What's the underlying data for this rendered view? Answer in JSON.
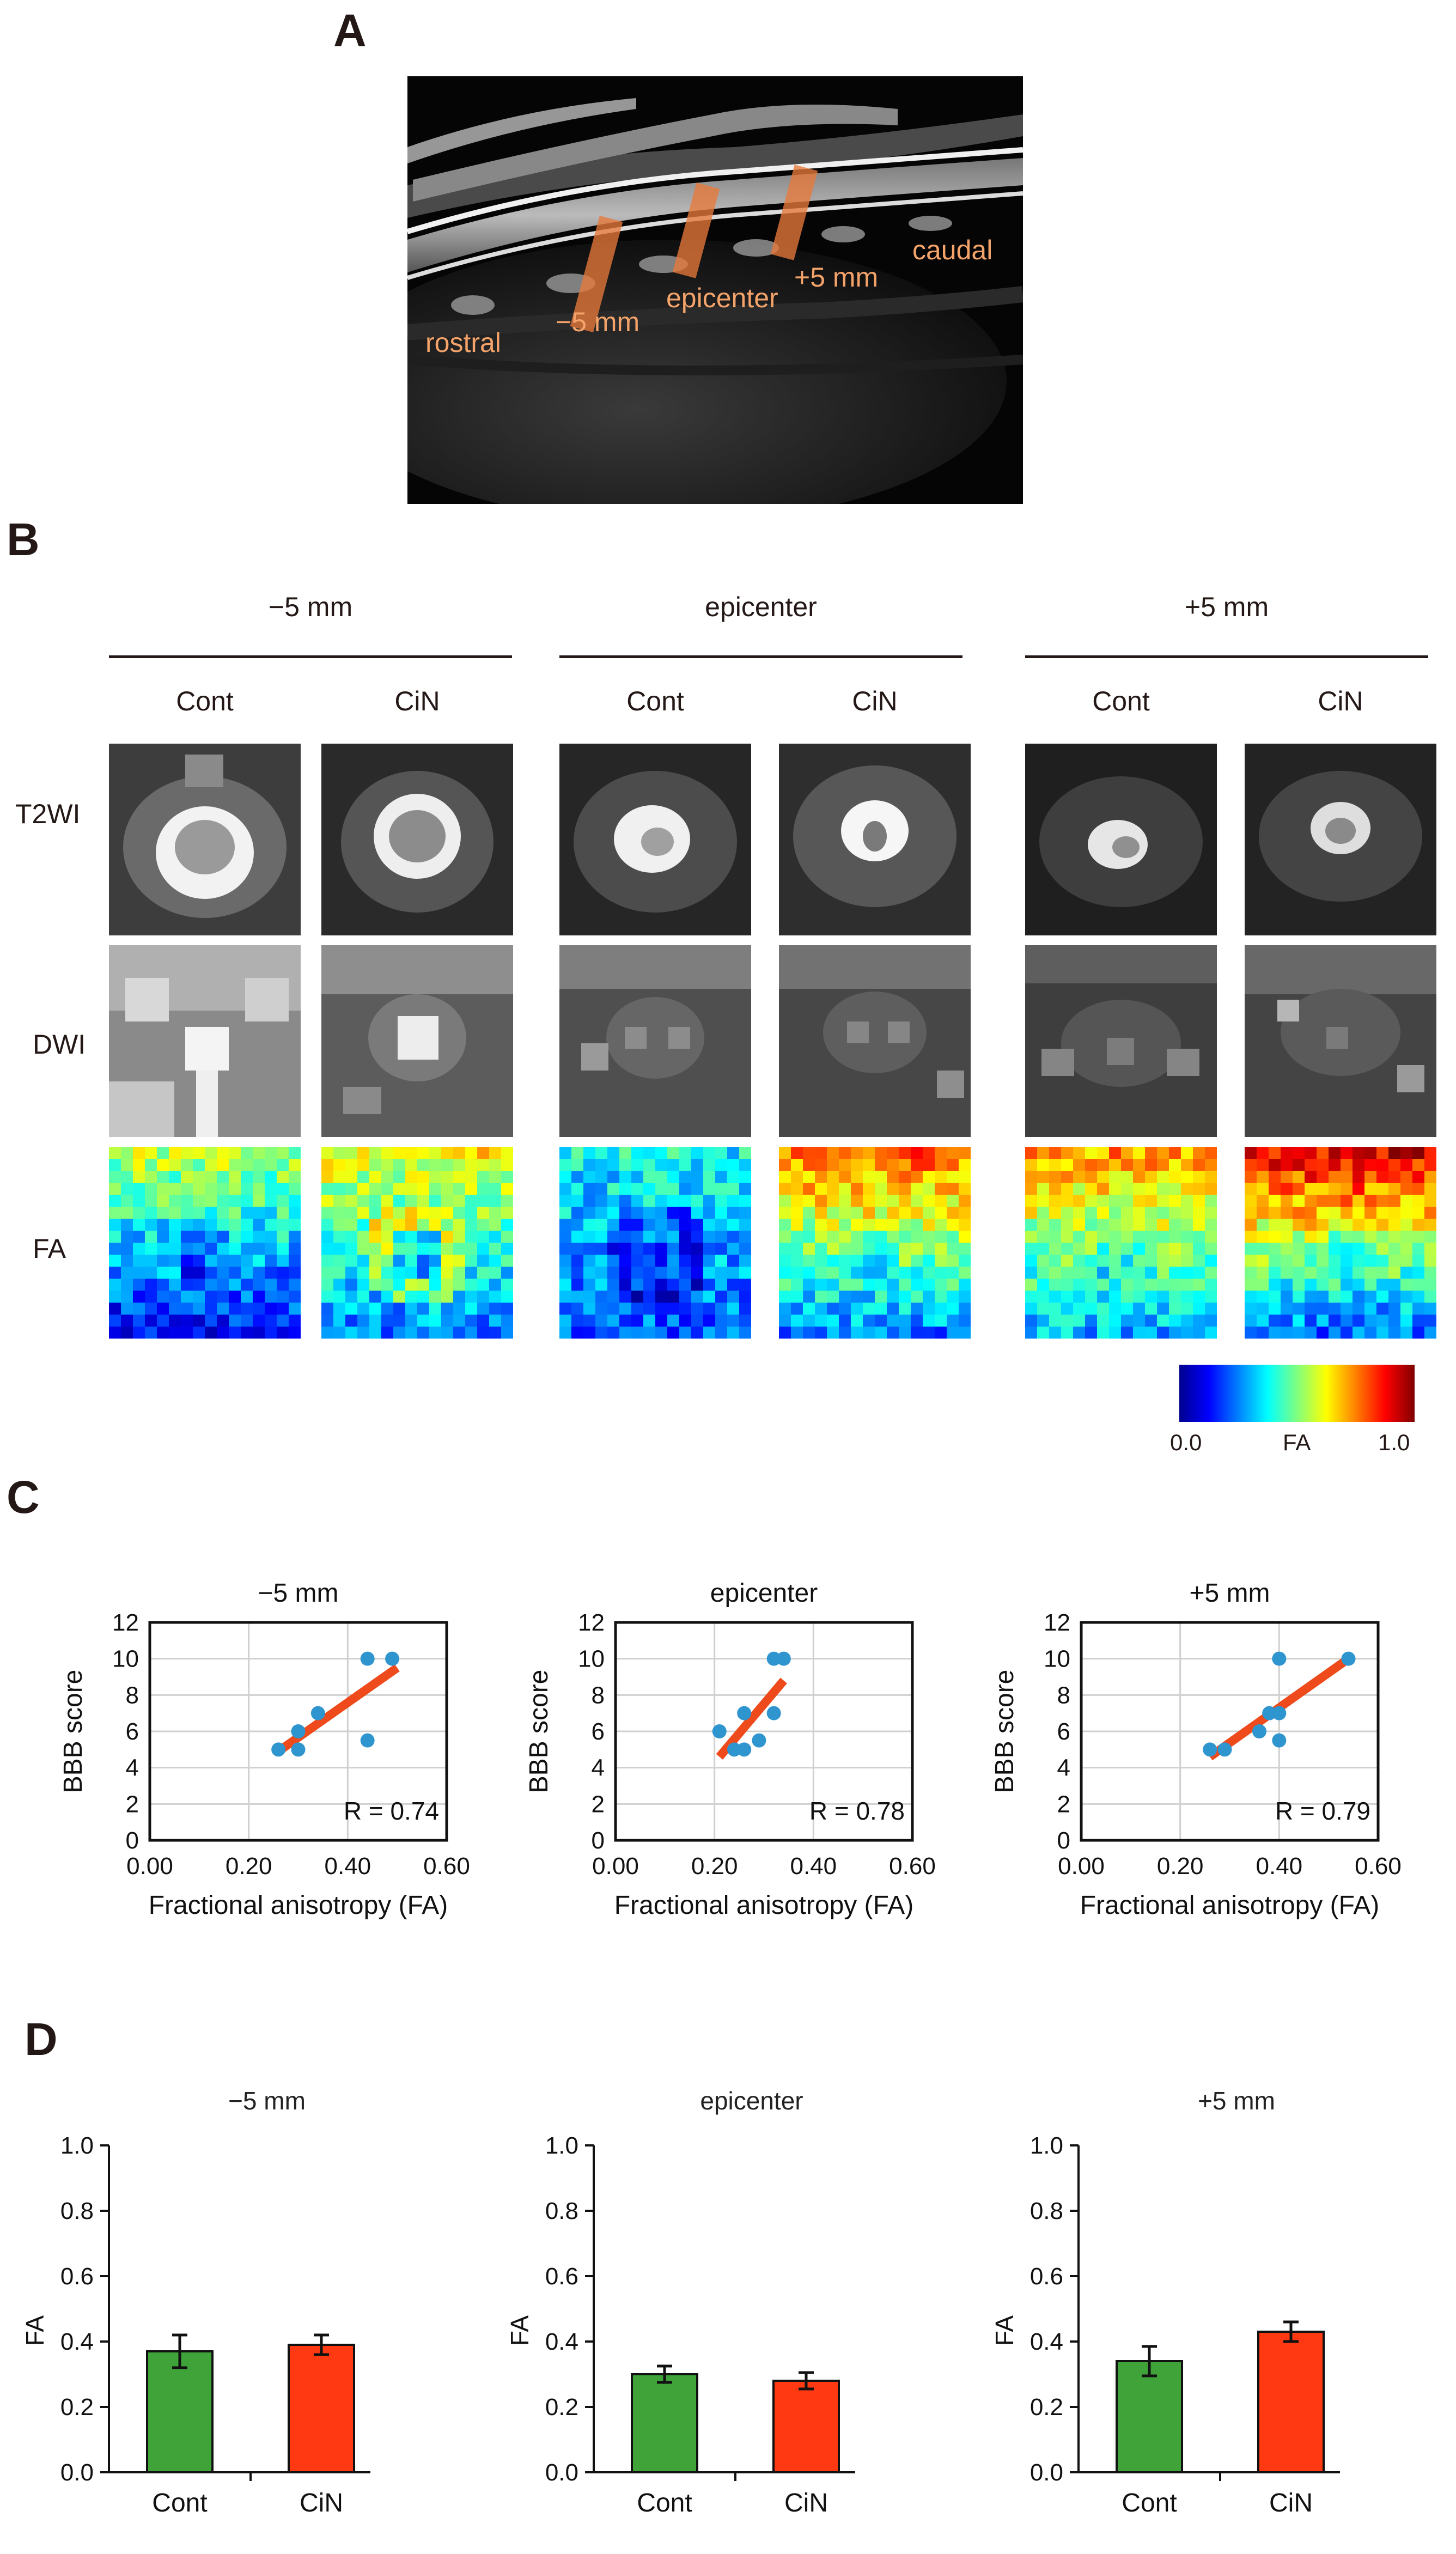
{
  "panels": {
    "A": "A",
    "B": "B",
    "C": "C",
    "D": "D"
  },
  "mri": {
    "labels": {
      "rostral": "rostral",
      "minus5": "−5 mm",
      "epicenter": "epicenter",
      "plus5": "+5 mm",
      "caudal": "caudal"
    },
    "colors": {
      "annotation": "#f4a36a",
      "slab": "#e87a3c"
    }
  },
  "panelB": {
    "groups": [
      "−5 mm",
      "epicenter",
      "+5 mm"
    ],
    "conditions": [
      "Cont",
      "CiN"
    ],
    "rows": [
      "T2WI",
      "DWI",
      "FA"
    ],
    "colorbar": {
      "min_label": "0.0",
      "title": "FA",
      "max_label": "1.0"
    }
  },
  "chart_data": [
    {
      "type": "scatter",
      "title": "−5 mm",
      "xlabel": "Fractional anisotropy (FA)",
      "ylabel": "BBB score",
      "xlim": [
        0.0,
        0.6
      ],
      "ylim": [
        0,
        12
      ],
      "xticks": [
        "0.00",
        "0.20",
        "0.40",
        "0.60"
      ],
      "yticks": [
        "0",
        "2",
        "4",
        "6",
        "8",
        "10",
        "12"
      ],
      "points": [
        [
          0.26,
          5
        ],
        [
          0.3,
          5
        ],
        [
          0.3,
          6
        ],
        [
          0.34,
          7
        ],
        [
          0.44,
          10
        ],
        [
          0.49,
          10
        ],
        [
          0.44,
          5.5
        ]
      ],
      "fit": [
        [
          0.26,
          4.9
        ],
        [
          0.5,
          9.5
        ]
      ],
      "annotation": "R = 0.74"
    },
    {
      "type": "scatter",
      "title": "epicenter",
      "xlabel": "Fractional anisotropy (FA)",
      "ylabel": "BBB score",
      "xlim": [
        0.0,
        0.6
      ],
      "ylim": [
        0,
        12
      ],
      "xticks": [
        "0.00",
        "0.20",
        "0.40",
        "0.60"
      ],
      "yticks": [
        "0",
        "2",
        "4",
        "6",
        "8",
        "10",
        "12"
      ],
      "points": [
        [
          0.21,
          6
        ],
        [
          0.24,
          5
        ],
        [
          0.26,
          5
        ],
        [
          0.26,
          7
        ],
        [
          0.29,
          5.5
        ],
        [
          0.32,
          7
        ],
        [
          0.32,
          10
        ],
        [
          0.34,
          10
        ]
      ],
      "fit": [
        [
          0.21,
          4.6
        ],
        [
          0.34,
          8.8
        ]
      ],
      "annotation": "R = 0.78"
    },
    {
      "type": "scatter",
      "title": "+5 mm",
      "xlabel": "Fractional anisotropy (FA)",
      "ylabel": "BBB score",
      "xlim": [
        0.0,
        0.6
      ],
      "ylim": [
        0,
        12
      ],
      "xticks": [
        "0.00",
        "0.20",
        "0.40",
        "0.60"
      ],
      "yticks": [
        "0",
        "2",
        "4",
        "6",
        "8",
        "10",
        "12"
      ],
      "points": [
        [
          0.26,
          5
        ],
        [
          0.29,
          5
        ],
        [
          0.36,
          6
        ],
        [
          0.38,
          7
        ],
        [
          0.4,
          7
        ],
        [
          0.4,
          5.5
        ],
        [
          0.4,
          10
        ],
        [
          0.54,
          10
        ]
      ],
      "fit": [
        [
          0.26,
          4.6
        ],
        [
          0.54,
          10.0
        ]
      ],
      "annotation": "R = 0.79"
    },
    {
      "type": "bar",
      "title": "−5 mm",
      "ylabel": "FA",
      "ylim": [
        0,
        1.0
      ],
      "yticks": [
        "0.0",
        "0.2",
        "0.4",
        "0.6",
        "0.8",
        "1.0"
      ],
      "categories": [
        "Cont",
        "CiN"
      ],
      "values": [
        0.37,
        0.39
      ],
      "errors": [
        0.05,
        0.03
      ],
      "colors": [
        "#3fa33a",
        "#ff3a12"
      ]
    },
    {
      "type": "bar",
      "title": "epicenter",
      "ylabel": "FA",
      "ylim": [
        0,
        1.0
      ],
      "yticks": [
        "0.0",
        "0.2",
        "0.4",
        "0.6",
        "0.8",
        "1.0"
      ],
      "categories": [
        "Cont",
        "CiN"
      ],
      "values": [
        0.3,
        0.28
      ],
      "errors": [
        0.025,
        0.025
      ],
      "colors": [
        "#3fa33a",
        "#ff3a12"
      ]
    },
    {
      "type": "bar",
      "title": "+5 mm",
      "ylabel": "FA",
      "ylim": [
        0,
        1.0
      ],
      "yticks": [
        "0.0",
        "0.2",
        "0.4",
        "0.6",
        "0.8",
        "1.0"
      ],
      "categories": [
        "Cont",
        "CiN"
      ],
      "values": [
        0.34,
        0.43
      ],
      "errors": [
        0.045,
        0.03
      ],
      "colors": [
        "#3fa33a",
        "#ff3a12"
      ]
    }
  ]
}
